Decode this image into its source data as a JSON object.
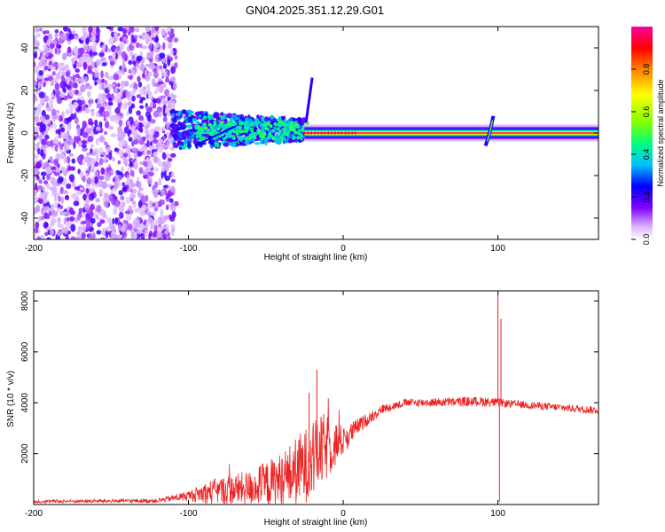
{
  "title": "GN04.2025.351.12.29.G01",
  "chart_data": [
    {
      "type": "heatmap",
      "name": "spectrogram",
      "xlabel": "Height of straight line (km)",
      "ylabel": "Frequency (Hz)",
      "xlim": [
        -200,
        165
      ],
      "ylim": [
        -50,
        50
      ],
      "xticks": [
        -200,
        -100,
        0,
        100
      ],
      "yticks": [
        -40,
        -20,
        0,
        20,
        40
      ],
      "colorbar": {
        "label": "Normalized spectral amplitude",
        "range": [
          0,
          1
        ],
        "ticks": [
          "0.0",
          "0.2",
          "0.4",
          "0.6",
          "0.8"
        ],
        "colormap": [
          "#ffffff",
          "#d9b3ff",
          "#8000ff",
          "#0000ff",
          "#00c0ff",
          "#00ff80",
          "#80ff00",
          "#ffff00",
          "#ff8000",
          "#ff0000",
          "#ff00a0"
        ]
      },
      "features": [
        {
          "description": "diffuse noise",
          "x_range": [
            -200,
            -108
          ],
          "f_range": [
            -50,
            50
          ],
          "amplitude": 0.1
        },
        {
          "description": "broadband signal onset",
          "x_range": [
            -110,
            -25
          ],
          "f_center": 0,
          "f_halfwidth": [
            8,
            4
          ],
          "amplitude": 0.4
        },
        {
          "description": "ridge near 0 Hz",
          "x_range": [
            -25,
            165
          ],
          "f_center": 0,
          "amplitude": 0.95
        },
        {
          "description": "disturbance",
          "x_center": 95,
          "f_range": [
            -6,
            8
          ],
          "amplitude": 0.5
        }
      ]
    },
    {
      "type": "line",
      "name": "snr",
      "xlabel": "Height of straight line (km)",
      "ylabel": "SNR (10 * v/v)",
      "xlim": [
        -200,
        165
      ],
      "ylim": [
        0,
        8400
      ],
      "xticks": [
        -200,
        -100,
        0,
        100
      ],
      "yticks": [
        2000,
        4000,
        6000,
        8000
      ],
      "color": "#ee2222",
      "envelope": [
        {
          "x": -200,
          "base": 120,
          "noise": 60
        },
        {
          "x": -120,
          "base": 150,
          "noise": 80
        },
        {
          "x": -100,
          "base": 350,
          "noise": 200
        },
        {
          "x": -85,
          "base": 500,
          "noise": 500
        },
        {
          "x": -60,
          "base": 650,
          "noise": 700
        },
        {
          "x": -40,
          "base": 950,
          "noise": 1100
        },
        {
          "x": -25,
          "base": 1500,
          "noise": 1500
        },
        {
          "x": -12,
          "base": 2200,
          "noise": 1400
        },
        {
          "x": 0,
          "base": 2500,
          "noise": 600
        },
        {
          "x": 10,
          "base": 3100,
          "noise": 300
        },
        {
          "x": 25,
          "base": 3750,
          "noise": 180
        },
        {
          "x": 40,
          "base": 4000,
          "noise": 150
        },
        {
          "x": 90,
          "base": 4050,
          "noise": 200
        },
        {
          "x": 110,
          "base": 3950,
          "noise": 150
        },
        {
          "x": 165,
          "base": 3700,
          "noise": 150
        }
      ],
      "spikes": [
        {
          "x": -17,
          "value": 5300
        },
        {
          "x": -22,
          "value": 4400
        },
        {
          "x": 100,
          "value": 8300
        },
        {
          "x": 101,
          "value": 100
        },
        {
          "x": 102,
          "value": 7300
        }
      ]
    }
  ]
}
